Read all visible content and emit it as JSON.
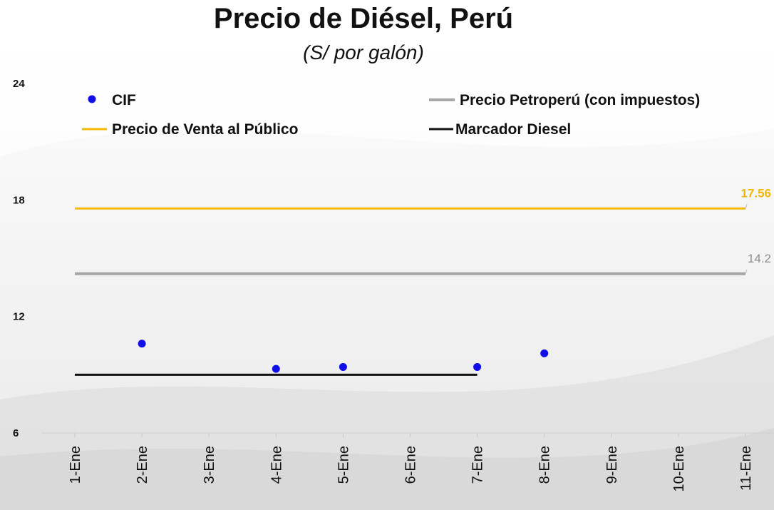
{
  "title": "Precio de Diésel, Perú",
  "subtitle": "(S/ por galón)",
  "colors": {
    "cif": "#1010e6",
    "petroperu": "#a6a6a6",
    "venta": "#f5b800",
    "marcador": "#111111"
  },
  "chart_data": {
    "type": "line",
    "title": "Precio de Diésel, Perú",
    "subtitle": "(S/ por galón)",
    "categories": [
      "1-Ene",
      "2-Ene",
      "3-Ene",
      "4-Ene",
      "5-Ene",
      "6-Ene",
      "7-Ene",
      "8-Ene",
      "9-Ene",
      "10-Ene",
      "11-Ene"
    ],
    "ylim": [
      6,
      24
    ],
    "yticks": [
      6,
      12,
      18,
      24
    ],
    "grid": false,
    "legend_placement": "top",
    "legend": [
      "CIF",
      "Precio Petroperú (con impuestos)",
      "Precio de Venta al Público",
      "Marcador Diesel"
    ],
    "series": [
      {
        "name": "CIF",
        "kind": "scatter",
        "color": "#1010e6",
        "values": [
          null,
          10.6,
          null,
          9.3,
          9.4,
          null,
          9.4,
          10.1,
          null,
          null,
          null
        ]
      },
      {
        "name": "Precio Petroperú (con impuestos)",
        "kind": "line",
        "color": "#a6a6a6",
        "values": [
          14.2,
          14.2,
          14.2,
          14.2,
          14.2,
          14.2,
          14.2,
          14.2,
          14.2,
          14.2,
          14.2
        ],
        "end_label": "14.2"
      },
      {
        "name": "Precio de Venta al Público",
        "kind": "line",
        "color": "#f5b800",
        "values": [
          17.56,
          17.56,
          17.56,
          17.56,
          17.56,
          17.56,
          17.56,
          17.56,
          17.56,
          17.56,
          17.56
        ],
        "end_label": "17.56"
      },
      {
        "name": "Marcador Diesel",
        "kind": "line",
        "color": "#111111",
        "values": [
          9.0,
          9.0,
          9.0,
          9.0,
          9.0,
          9.0,
          9.0,
          null,
          null,
          null,
          null
        ]
      }
    ]
  }
}
